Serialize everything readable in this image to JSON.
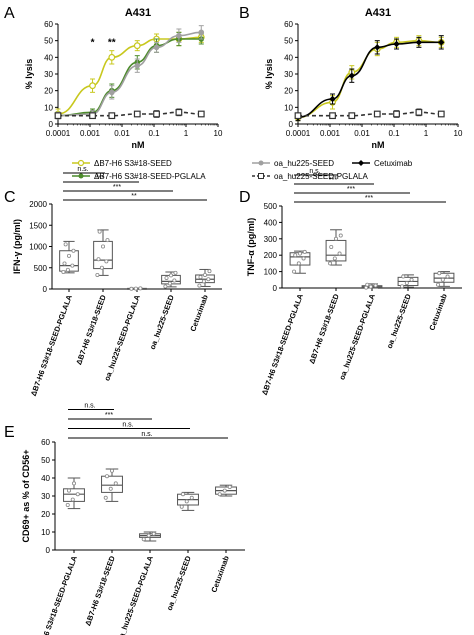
{
  "series_colors": {
    "db7_seed": "#c8c81e",
    "db7_pglala": "#4c8b2b",
    "oa_seed": "#a0a0a0",
    "oa_pglala": "#333333",
    "cetuximab": "#000000"
  },
  "legend": {
    "items": [
      {
        "key": "db7_seed",
        "label": "ΔB7-H6 S3#18-SEED"
      },
      {
        "key": "oa_seed",
        "label": "oa_hu225-SEED"
      },
      {
        "key": "cetuximab",
        "label": "Cetuximab"
      },
      {
        "key": "db7_pglala",
        "label": "ΔB7-H6 S3#18-SEED-PGLALA"
      },
      {
        "key": "oa_pglala",
        "label": "oa_hu225-SEED-PGLALA"
      }
    ]
  },
  "chart_data": [
    {
      "panel": "A",
      "type": "line",
      "title": "A431",
      "xlabel": "nM",
      "ylabel": "% lysis",
      "xscale": "log",
      "xlim": [
        0.0001,
        10
      ],
      "ylim": [
        0,
        60
      ],
      "xticks": [
        "0.0001",
        "0.001",
        "0.01",
        "0.1",
        "1",
        "10"
      ],
      "yticks": [
        0,
        10,
        20,
        30,
        40,
        50,
        60
      ],
      "significance": [
        {
          "x": 0.0012,
          "label": "*"
        },
        {
          "x": 0.0048,
          "label": "**"
        }
      ],
      "series": [
        {
          "key": "db7_seed",
          "x": [
            0.0001,
            0.0012,
            0.0048,
            0.03,
            0.12,
            0.6,
            3
          ],
          "y": [
            6,
            23,
            40,
            47,
            51,
            51,
            52
          ],
          "err": [
            3,
            4,
            4,
            3,
            3,
            4,
            3
          ],
          "marker": "circle-open",
          "dashed": false
        },
        {
          "key": "db7_pglala",
          "x": [
            0.0001,
            0.0012,
            0.0048,
            0.03,
            0.12,
            0.6,
            3
          ],
          "y": [
            5,
            7,
            20,
            37,
            47,
            51,
            51
          ],
          "err": [
            2,
            2,
            4,
            4,
            4,
            4,
            3
          ],
          "marker": "circle",
          "dashed": false
        },
        {
          "key": "oa_seed",
          "x": [
            0.0001,
            0.0012,
            0.0048,
            0.03,
            0.12,
            0.6,
            3
          ],
          "y": [
            5,
            6,
            19,
            35,
            46,
            53,
            55
          ],
          "err": [
            2,
            2,
            4,
            4,
            3,
            4,
            4
          ],
          "marker": "circle",
          "dashed": false
        },
        {
          "key": "oa_pglala",
          "x": [
            0.0001,
            0.0012,
            0.0048,
            0.03,
            0.12,
            0.6,
            3
          ],
          "y": [
            5,
            5,
            5,
            6,
            6,
            7,
            6
          ],
          "err": [
            1,
            1,
            1,
            1,
            2,
            2,
            1
          ],
          "marker": "square-open",
          "dashed": true
        }
      ]
    },
    {
      "panel": "B",
      "type": "line",
      "title": "A431",
      "xlabel": "nM",
      "ylabel": "% lysis",
      "xscale": "log",
      "xlim": [
        0.0001,
        10
      ],
      "ylim": [
        0,
        60
      ],
      "xticks": [
        "0.0001",
        "0.001",
        "0.01",
        "0.1",
        "1",
        "10"
      ],
      "yticks": [
        0,
        10,
        20,
        30,
        40,
        50,
        60
      ],
      "series": [
        {
          "key": "db7_seed",
          "x": [
            0.0001,
            0.0012,
            0.0048,
            0.03,
            0.12,
            0.6,
            3
          ],
          "y": [
            4,
            13,
            31,
            45,
            49,
            50,
            49
          ],
          "err": [
            2,
            4,
            4,
            4,
            3,
            3,
            3
          ],
          "marker": "circle-open",
          "dashed": false
        },
        {
          "key": "cetuximab",
          "x": [
            0.0001,
            0.0012,
            0.0048,
            0.03,
            0.12,
            0.6,
            3
          ],
          "y": [
            4,
            15,
            29,
            46,
            48,
            49,
            49
          ],
          "err": [
            2,
            3,
            4,
            4,
            3,
            3,
            4
          ],
          "marker": "diamond",
          "dashed": false
        },
        {
          "key": "oa_pglala",
          "x": [
            0.0001,
            0.0012,
            0.0048,
            0.03,
            0.12,
            0.6,
            3
          ],
          "y": [
            5,
            5,
            5,
            6,
            6,
            7,
            6
          ],
          "err": [
            1,
            1,
            1,
            1,
            2,
            2,
            1
          ],
          "marker": "square-open",
          "dashed": true
        }
      ]
    },
    {
      "panel": "C",
      "type": "box",
      "ylabel": "IFN-γ (pg/ml)",
      "ylim": [
        0,
        2000
      ],
      "yticks": [
        0,
        500,
        1000,
        1500,
        2000
      ],
      "categories": [
        "ΔB7-H6 S3#18-SEED-PGLALA",
        "ΔB7-H6 S3#18-SEED",
        "oa_hu225-SEED-PGLALA",
        "oa_hu225-SEED",
        "Cetuximab"
      ],
      "boxes": [
        {
          "min": 380,
          "q1": 420,
          "median": 550,
          "q3": 900,
          "max": 1120,
          "points": [
            400,
            450,
            550,
            600,
            780,
            900,
            1050
          ]
        },
        {
          "min": 320,
          "q1": 480,
          "median": 680,
          "q3": 1120,
          "max": 1390,
          "points": [
            330,
            500,
            650,
            700,
            1000,
            1150,
            1350
          ]
        },
        {
          "min": 0,
          "q1": 5,
          "median": 10,
          "q3": 15,
          "max": 20,
          "points": [
            5,
            10,
            15
          ]
        },
        {
          "min": 50,
          "q1": 120,
          "median": 180,
          "q3": 320,
          "max": 400,
          "points": [
            60,
            130,
            200,
            260,
            320,
            380
          ]
        },
        {
          "min": 60,
          "q1": 150,
          "median": 230,
          "q3": 330,
          "max": 460,
          "points": [
            80,
            180,
            230,
            280,
            330,
            420
          ]
        }
      ],
      "significance": [
        {
          "from": 0,
          "to": 1,
          "label": "n.s."
        },
        {
          "from": 0,
          "to": 2,
          "label": "***"
        },
        {
          "from": 0,
          "to": 3,
          "label": "***"
        },
        {
          "from": 0,
          "to": 4,
          "label": "**"
        }
      ]
    },
    {
      "panel": "D",
      "type": "box",
      "ylabel": "TNF-α (pg/ml)",
      "ylim": [
        0,
        500
      ],
      "yticks": [
        0,
        100,
        200,
        300,
        400,
        500
      ],
      "categories": [
        "ΔB7-H6 S3#18-SEED-PGLALA",
        "ΔB7-H6 S3#18-SEED",
        "oa_hu225-SEED-PGLALA",
        "oa_hu225-SEED",
        "Cetuximab"
      ],
      "boxes": [
        {
          "min": 90,
          "q1": 140,
          "median": 190,
          "q3": 215,
          "max": 225,
          "points": [
            100,
            150,
            180,
            200,
            210,
            220
          ]
        },
        {
          "min": 140,
          "q1": 165,
          "median": 200,
          "q3": 290,
          "max": 355,
          "points": [
            150,
            180,
            210,
            250,
            300,
            320
          ]
        },
        {
          "min": 0,
          "q1": 3,
          "median": 8,
          "q3": 14,
          "max": 25,
          "points": [
            2,
            8,
            15,
            20
          ]
        },
        {
          "min": 5,
          "q1": 15,
          "median": 40,
          "q3": 65,
          "max": 80,
          "points": [
            10,
            30,
            50,
            70
          ]
        },
        {
          "min": 10,
          "q1": 35,
          "median": 60,
          "q3": 90,
          "max": 100,
          "points": [
            20,
            50,
            70,
            90
          ]
        }
      ],
      "significance": [
        {
          "from": 0,
          "to": 1,
          "label": "n.s."
        },
        {
          "from": 0,
          "to": 2,
          "label": "***"
        },
        {
          "from": 0,
          "to": 3,
          "label": "***"
        },
        {
          "from": 0,
          "to": 4,
          "label": "***"
        }
      ]
    },
    {
      "panel": "E",
      "type": "box",
      "ylabel": "CD69+ as % of CD56+",
      "ylim": [
        0,
        60
      ],
      "yticks": [
        0,
        10,
        20,
        30,
        40,
        50,
        60
      ],
      "categories": [
        "ΔB7-H6 S3#18-SEED-PGLALA",
        "ΔB7-H6 S3#18-SEED",
        "oa_hu225-SEED-PGLALA",
        "oa_hu225-SEED",
        "Cetuximab"
      ],
      "boxes": [
        {
          "min": 23,
          "q1": 27,
          "median": 31,
          "q3": 34,
          "max": 40,
          "points": [
            25,
            28,
            31,
            33,
            37
          ]
        },
        {
          "min": 27,
          "q1": 32,
          "median": 36,
          "q3": 41,
          "max": 45,
          "points": [
            29,
            34,
            37,
            41,
            44
          ]
        },
        {
          "min": 5,
          "q1": 7,
          "median": 8,
          "q3": 9,
          "max": 10,
          "points": [
            6,
            8,
            9
          ]
        },
        {
          "min": 22,
          "q1": 25,
          "median": 28,
          "q3": 31,
          "max": 32,
          "points": [
            24,
            27,
            29,
            31
          ]
        },
        {
          "min": 30,
          "q1": 31,
          "median": 33,
          "q3": 35,
          "max": 36,
          "points": [
            31,
            33,
            35
          ]
        }
      ],
      "significance": [
        {
          "from": 0,
          "to": 1,
          "label": "n.s."
        },
        {
          "from": 0,
          "to": 2,
          "label": "***"
        },
        {
          "from": 0,
          "to": 3,
          "label": "n.s."
        },
        {
          "from": 0,
          "to": 4,
          "label": "n.s."
        }
      ]
    }
  ]
}
